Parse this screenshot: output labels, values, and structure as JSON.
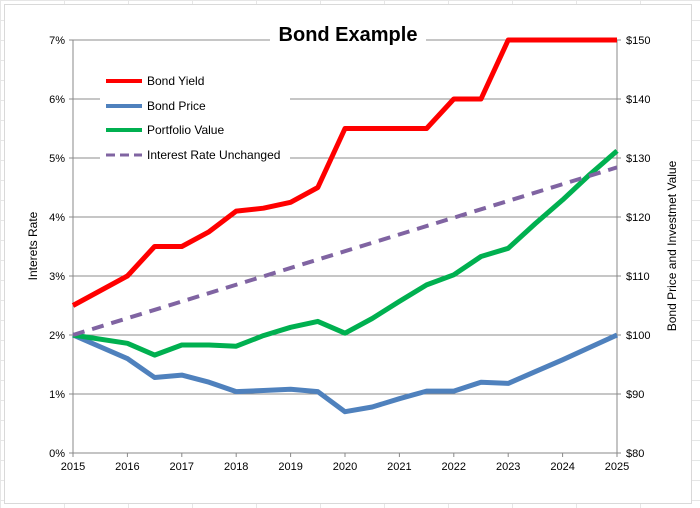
{
  "chart_data": {
    "type": "line",
    "title": "Bond Example",
    "xlabel": "",
    "ylabel": "Interets Rate",
    "y2label": "Bond Price  and Investmet Value",
    "x_ticks": [
      "2015",
      "2016",
      "2017",
      "2018",
      "2019",
      "2020",
      "2021",
      "2022",
      "2023",
      "2024",
      "2025"
    ],
    "xlim": [
      2015,
      2025
    ],
    "ylim": [
      0,
      7
    ],
    "y_ticks": [
      "0%",
      "1%",
      "2%",
      "3%",
      "4%",
      "5%",
      "6%",
      "7%"
    ],
    "y2lim": [
      80,
      150
    ],
    "y2_ticks": [
      "$80",
      "$90",
      "$100",
      "$110",
      "$120",
      "$130",
      "$140",
      "$150"
    ],
    "grid": "horizontal",
    "legend_position": "top-left",
    "series": [
      {
        "name": "Bond Yield",
        "axis": "left",
        "color": "#ff0000",
        "style": "solid",
        "x": [
          2015,
          2016,
          2016.5,
          2017,
          2017.5,
          2018,
          2018.5,
          2019,
          2019.5,
          2020,
          2020.5,
          2021,
          2021.5,
          2022,
          2022.5,
          2023,
          2023.5,
          2024,
          2024.5,
          2025
        ],
        "y": [
          2.5,
          3.0,
          3.5,
          3.5,
          3.75,
          4.1,
          4.15,
          4.25,
          4.5,
          5.5,
          5.5,
          5.5,
          5.5,
          6.0,
          6.0,
          7.0,
          7.0,
          7.0,
          7.0,
          7.0
        ]
      },
      {
        "name": "Bond Price",
        "axis": "right",
        "color": "#4f81bd",
        "style": "solid",
        "x": [
          2015,
          2016,
          2016.5,
          2017,
          2017.5,
          2018,
          2018.5,
          2019,
          2019.5,
          2020,
          2020.5,
          2021,
          2021.5,
          2022,
          2022.5,
          2023,
          2023.5,
          2024,
          2024.5,
          2025
        ],
        "y": [
          100,
          96,
          92.8,
          93.2,
          92,
          90.4,
          90.6,
          90.8,
          90.4,
          87,
          87.8,
          89.2,
          90.5,
          90.5,
          92,
          91.8,
          93.8,
          95.8,
          97.9,
          100
        ]
      },
      {
        "name": "Portfolio Value",
        "axis": "right",
        "color": "#00b050",
        "style": "solid",
        "x": [
          2015,
          2016,
          2016.5,
          2017,
          2017.5,
          2018,
          2018.5,
          2019,
          2019.5,
          2020,
          2020.5,
          2021,
          2021.5,
          2022,
          2022.5,
          2023,
          2023.5,
          2024,
          2024.5,
          2025
        ],
        "y": [
          100,
          98.6,
          96.6,
          98.3,
          98.3,
          98.1,
          99.9,
          101.3,
          102.3,
          100.3,
          102.8,
          105.7,
          108.5,
          110.2,
          113.3,
          114.7,
          118.9,
          122.9,
          127.2,
          131.2
        ]
      },
      {
        "name": "Interest Rate Unchanged",
        "axis": "right",
        "color": "#8064a2",
        "style": "dashed",
        "x": [
          2015,
          2025
        ],
        "y": [
          100,
          128.4
        ]
      }
    ]
  }
}
